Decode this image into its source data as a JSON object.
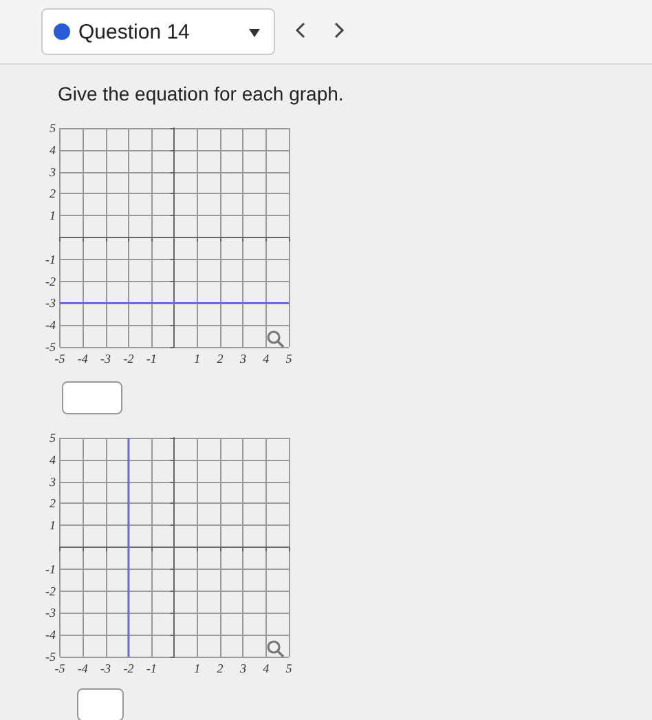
{
  "chart_data": [
    {
      "type": "line",
      "title": "Give the equation for each graph.",
      "annotations": [
        "Question 14"
      ],
      "x": [
        -5,
        5
      ],
      "values": [
        -3,
        -3
      ],
      "color": "#6a6ad8",
      "xlim": [
        -5,
        5
      ],
      "ylim": [
        -5,
        5
      ],
      "xticks": [
        -5,
        -4,
        -3,
        -2,
        -1,
        {
          "value": 0,
          "label": null
        },
        1,
        2,
        3,
        4,
        5
      ],
      "yticks": [
        -5,
        -4,
        -3,
        -2,
        -1,
        {
          "value": 0,
          "label": null
        },
        1,
        2,
        3,
        4,
        5
      ],
      "grid": true,
      "marker": "none",
      "line_style": "solid"
    },
    {
      "type": "line",
      "x": [
        -2,
        -2
      ],
      "values": [
        -5,
        5
      ],
      "color": "#6a6ad8",
      "xlim": [
        -5,
        5
      ],
      "ylim": [
        -5,
        5
      ],
      "xticks": [
        -5,
        -4,
        -3,
        -2,
        -1,
        {
          "value": 0,
          "label": null
        },
        1,
        2,
        3,
        4,
        5
      ],
      "yticks": [
        -5,
        -4,
        -3,
        -2,
        -1,
        {
          "value": 0,
          "label": null
        },
        1,
        2,
        3,
        4,
        5
      ],
      "grid": true,
      "marker": "none",
      "line_style": "solid"
    }
  ]
}
